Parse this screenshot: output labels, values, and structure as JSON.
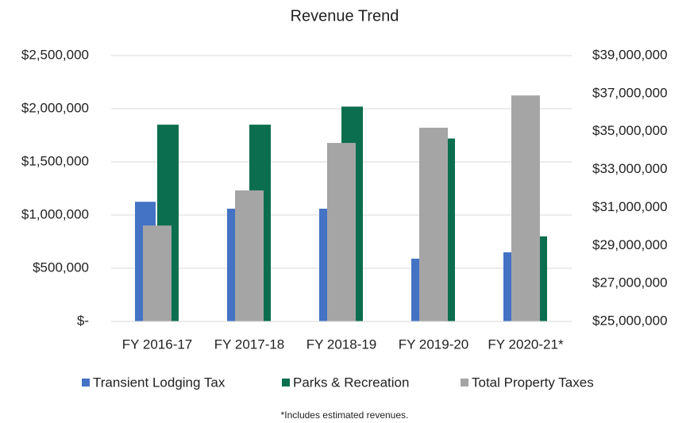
{
  "chart_data": {
    "type": "bar",
    "title": "Revenue Trend",
    "categories": [
      "FY 2016-17",
      "FY 2017-18",
      "FY 2018-19",
      "FY 2019-20",
      "FY 2020-21*"
    ],
    "series": [
      {
        "name": "Transient Lodging Tax",
        "color": "#4472c4",
        "values": [
          1125000,
          1060000,
          1060000,
          590000,
          650000
        ]
      },
      {
        "name": "Parks & Recreation",
        "color": "#0b6e4f",
        "values": [
          1850000,
          1850000,
          2020000,
          1720000,
          800000
        ]
      },
      {
        "name": "Total Property Taxes",
        "color": "#a5a5a5",
        "axis": "y2",
        "values": [
          30050000,
          31900000,
          34400000,
          35200000,
          36900000
        ]
      }
    ],
    "ylim": [
      0,
      2500000
    ],
    "yticks": [
      {
        "value": 0,
        "label": "$-"
      },
      {
        "value": 500000,
        "label": "$500,000"
      },
      {
        "value": 1000000,
        "label": "$1,000,000"
      },
      {
        "value": 1500000,
        "label": "$1,500,000"
      },
      {
        "value": 2000000,
        "label": "$2,000,000"
      },
      {
        "value": 2500000,
        "label": "$2,500,000"
      }
    ],
    "y2lim": [
      25000000,
      39000000
    ],
    "y2ticks": [
      {
        "value": 25000000,
        "label": "$25,000,000"
      },
      {
        "value": 27000000,
        "label": "$27,000,000"
      },
      {
        "value": 29000000,
        "label": "$29,000,000"
      },
      {
        "value": 31000000,
        "label": "$31,000,000"
      },
      {
        "value": 33000000,
        "label": "$33,000,000"
      },
      {
        "value": 35000000,
        "label": "$35,000,000"
      },
      {
        "value": 37000000,
        "label": "$37,000,000"
      },
      {
        "value": 39000000,
        "label": "$39,000,000"
      }
    ],
    "grid": true,
    "legend": "bottom",
    "annotation": "*Includes estimated revenues."
  }
}
